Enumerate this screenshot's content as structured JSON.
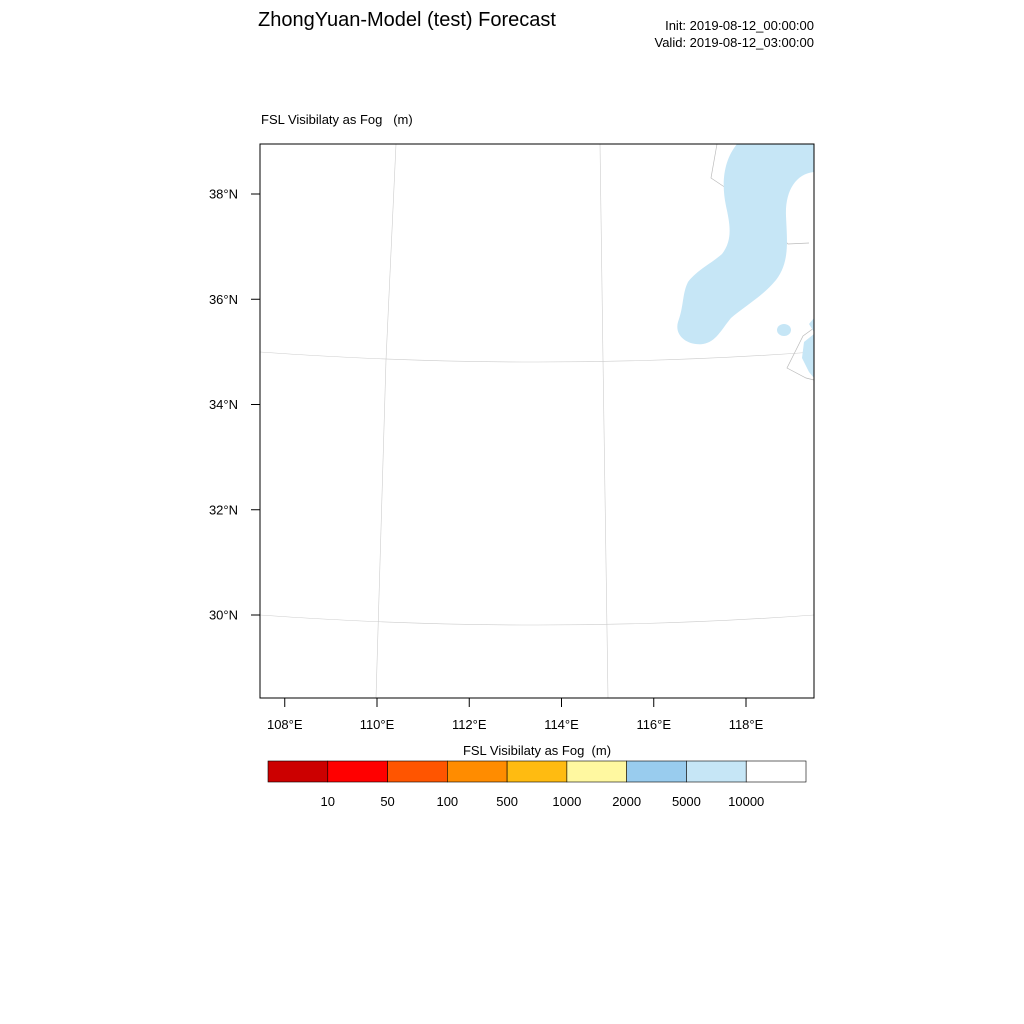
{
  "header": {
    "title": "ZhongYuan-Model (test) Forecast",
    "init": "Init: 2019-08-12_00:00:00",
    "valid": "Valid: 2019-08-12_03:00:00"
  },
  "map": {
    "field_title": "FSL Visibilaty as Fog   (m)",
    "lat_labels": [
      "38°N",
      "36°N",
      "34°N",
      "32°N",
      "30°N"
    ],
    "lat_values": [
      38,
      36,
      34,
      32,
      30
    ],
    "lon_labels": [
      "108°E",
      "110°E",
      "112°E",
      "114°E",
      "116°E",
      "118°E"
    ],
    "lon_values": [
      108,
      110,
      112,
      114,
      116,
      118
    ],
    "fog_color": "#c6e6f6",
    "grid_color": "#cccccc"
  },
  "colorbar": {
    "title": "FSL Visibilaty as Fog  (m)",
    "levels": [
      "10",
      "50",
      "100",
      "500",
      "1000",
      "2000",
      "5000",
      "10000"
    ],
    "colors": [
      "#cc0000",
      "#ff0000",
      "#ff5500",
      "#ff8c00",
      "#ffbb11",
      "#fff8a0",
      "#99ccee",
      "#c6e6f6",
      "#ffffff"
    ]
  }
}
